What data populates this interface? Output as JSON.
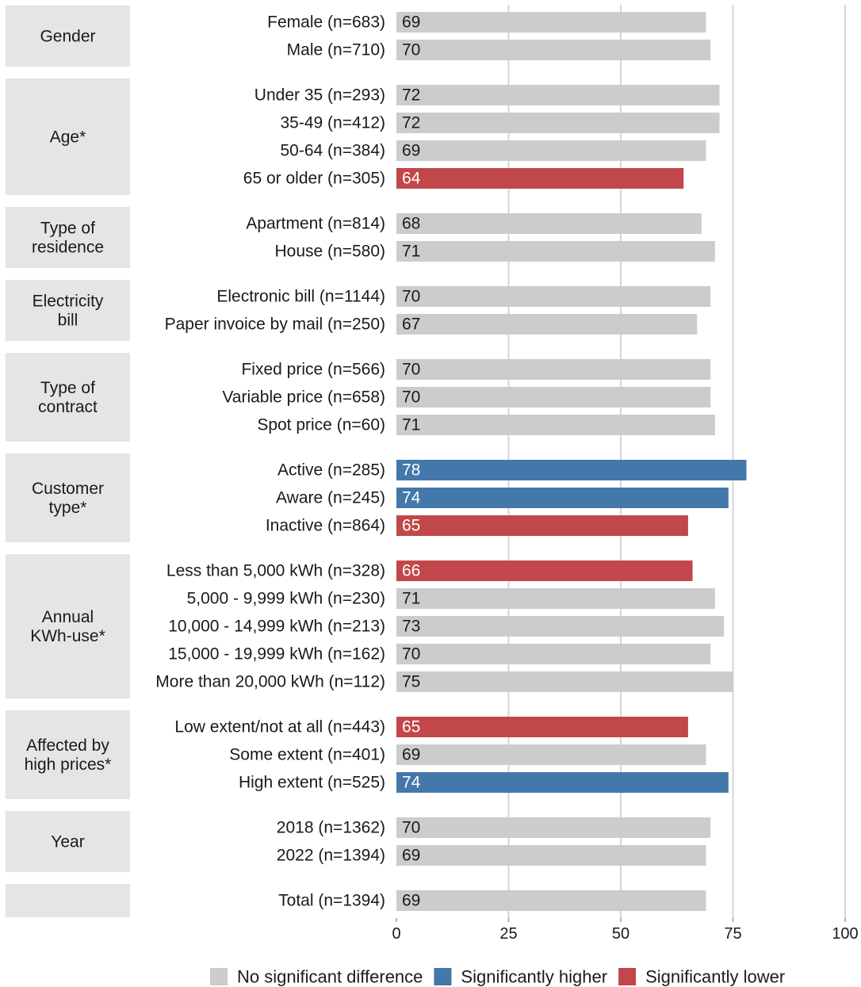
{
  "chart_data": {
    "type": "bar",
    "orientation": "horizontal",
    "xlim": [
      0,
      100
    ],
    "xticks": [
      "0",
      "25",
      "50",
      "75",
      "100"
    ],
    "grid": true,
    "colors": {
      "none": "#cccccc",
      "higher": "#4477aa",
      "lower": "#c1474a"
    },
    "legend": {
      "placement": "bottom",
      "items": [
        {
          "key": "none",
          "label": "No significant difference"
        },
        {
          "key": "higher",
          "label": "Significantly higher"
        },
        {
          "key": "lower",
          "label": "Significantly lower"
        }
      ]
    },
    "groups": [
      {
        "label": "Gender",
        "bars": [
          {
            "label": "Female (n=683)",
            "value": 69,
            "status": "none"
          },
          {
            "label": "Male (n=710)",
            "value": 70,
            "status": "none"
          }
        ]
      },
      {
        "label": "Age*",
        "bars": [
          {
            "label": "Under 35 (n=293)",
            "value": 72,
            "status": "none"
          },
          {
            "label": "35-49 (n=412)",
            "value": 72,
            "status": "none"
          },
          {
            "label": "50-64 (n=384)",
            "value": 69,
            "status": "none"
          },
          {
            "label": "65 or older (n=305)",
            "value": 64,
            "status": "lower"
          }
        ]
      },
      {
        "label": "Type of residence",
        "bars": [
          {
            "label": "Apartment (n=814)",
            "value": 68,
            "status": "none"
          },
          {
            "label": "House (n=580)",
            "value": 71,
            "status": "none"
          }
        ]
      },
      {
        "label": "Electricity bill",
        "bars": [
          {
            "label": "Electronic bill (n=1144)",
            "value": 70,
            "status": "none"
          },
          {
            "label": "Paper invoice by mail (n=250)",
            "value": 67,
            "status": "none"
          }
        ]
      },
      {
        "label": "Type of contract",
        "bars": [
          {
            "label": "Fixed price (n=566)",
            "value": 70,
            "status": "none"
          },
          {
            "label": "Variable price (n=658)",
            "value": 70,
            "status": "none"
          },
          {
            "label": "Spot price (n=60)",
            "value": 71,
            "status": "none"
          }
        ]
      },
      {
        "label": "Customer type*",
        "bars": [
          {
            "label": "Active (n=285)",
            "value": 78,
            "status": "higher"
          },
          {
            "label": "Aware (n=245)",
            "value": 74,
            "status": "higher"
          },
          {
            "label": "Inactive (n=864)",
            "value": 65,
            "status": "lower"
          }
        ]
      },
      {
        "label": "Annual KWh-use*",
        "bars": [
          {
            "label": "Less than 5,000 kWh (n=328)",
            "value": 66,
            "status": "lower"
          },
          {
            "label": "5,000 - 9,999 kWh (n=230)",
            "value": 71,
            "status": "none"
          },
          {
            "label": "10,000 - 14,999 kWh (n=213)",
            "value": 73,
            "status": "none"
          },
          {
            "label": "15,000 - 19,999 kWh (n=162)",
            "value": 70,
            "status": "none"
          },
          {
            "label": "More than 20,000 kWh (n=112)",
            "value": 75,
            "status": "none"
          }
        ]
      },
      {
        "label": "Affected by high prices*",
        "bars": [
          {
            "label": "Low extent/not at all (n=443)",
            "value": 65,
            "status": "lower"
          },
          {
            "label": "Some extent (n=401)",
            "value": 69,
            "status": "none"
          },
          {
            "label": "High extent (n=525)",
            "value": 74,
            "status": "higher"
          }
        ]
      },
      {
        "label": "Year",
        "bars": [
          {
            "label": "2018 (n=1362)",
            "value": 70,
            "status": "none"
          },
          {
            "label": "2022 (n=1394)",
            "value": 69,
            "status": "none"
          }
        ]
      },
      {
        "label": "",
        "bars": [
          {
            "label": "Total (n=1394)",
            "value": 69,
            "status": "none"
          }
        ]
      }
    ]
  }
}
